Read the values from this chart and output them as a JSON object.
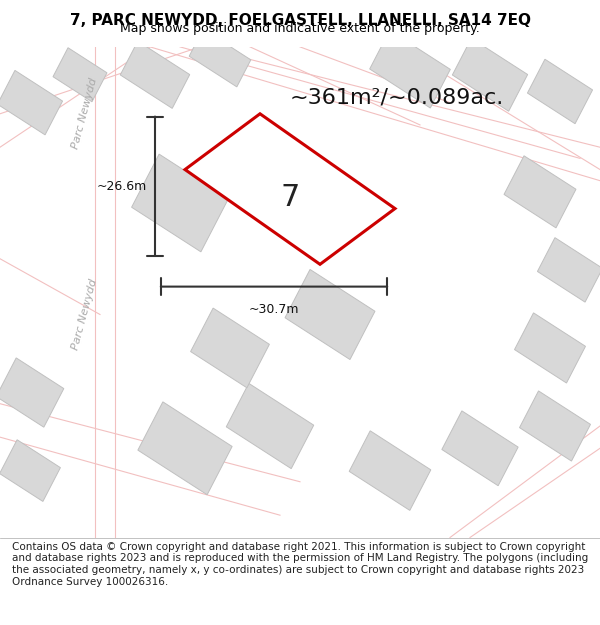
{
  "title_line1": "7, PARC NEWYDD, FOELGASTELL, LLANELLI, SA14 7EQ",
  "title_line2": "Map shows position and indicative extent of the property.",
  "footer_text": "Contains OS data © Crown copyright and database right 2021. This information is subject to Crown copyright and database rights 2023 and is reproduced with the permission of HM Land Registry. The polygons (including the associated geometry, namely x, y co-ordinates) are subject to Crown copyright and database rights 2023 Ordnance Survey 100026316.",
  "area_label": "~361m²/~0.089ac.",
  "number_label": "7",
  "dim_width_label": "~30.7m",
  "dim_height_label": "~26.6m",
  "street_name_1": "Parc Newydd",
  "street_name_2": "Parc Newydd",
  "bg_color": "#f5f5f5",
  "map_bg": "#f0f0f0",
  "road_color": "#e8d5d5",
  "road_color2": "#f2c0c0",
  "building_color": "#d8d8d8",
  "building_edge": "#c0c0c0",
  "highlight_color": "#e8e8e8",
  "red_outline": "#cc0000",
  "dim_line_color": "#333333",
  "title_fontsize": 11,
  "subtitle_fontsize": 9,
  "footer_fontsize": 7.5,
  "label_fontsize": 14,
  "area_fontsize": 16
}
